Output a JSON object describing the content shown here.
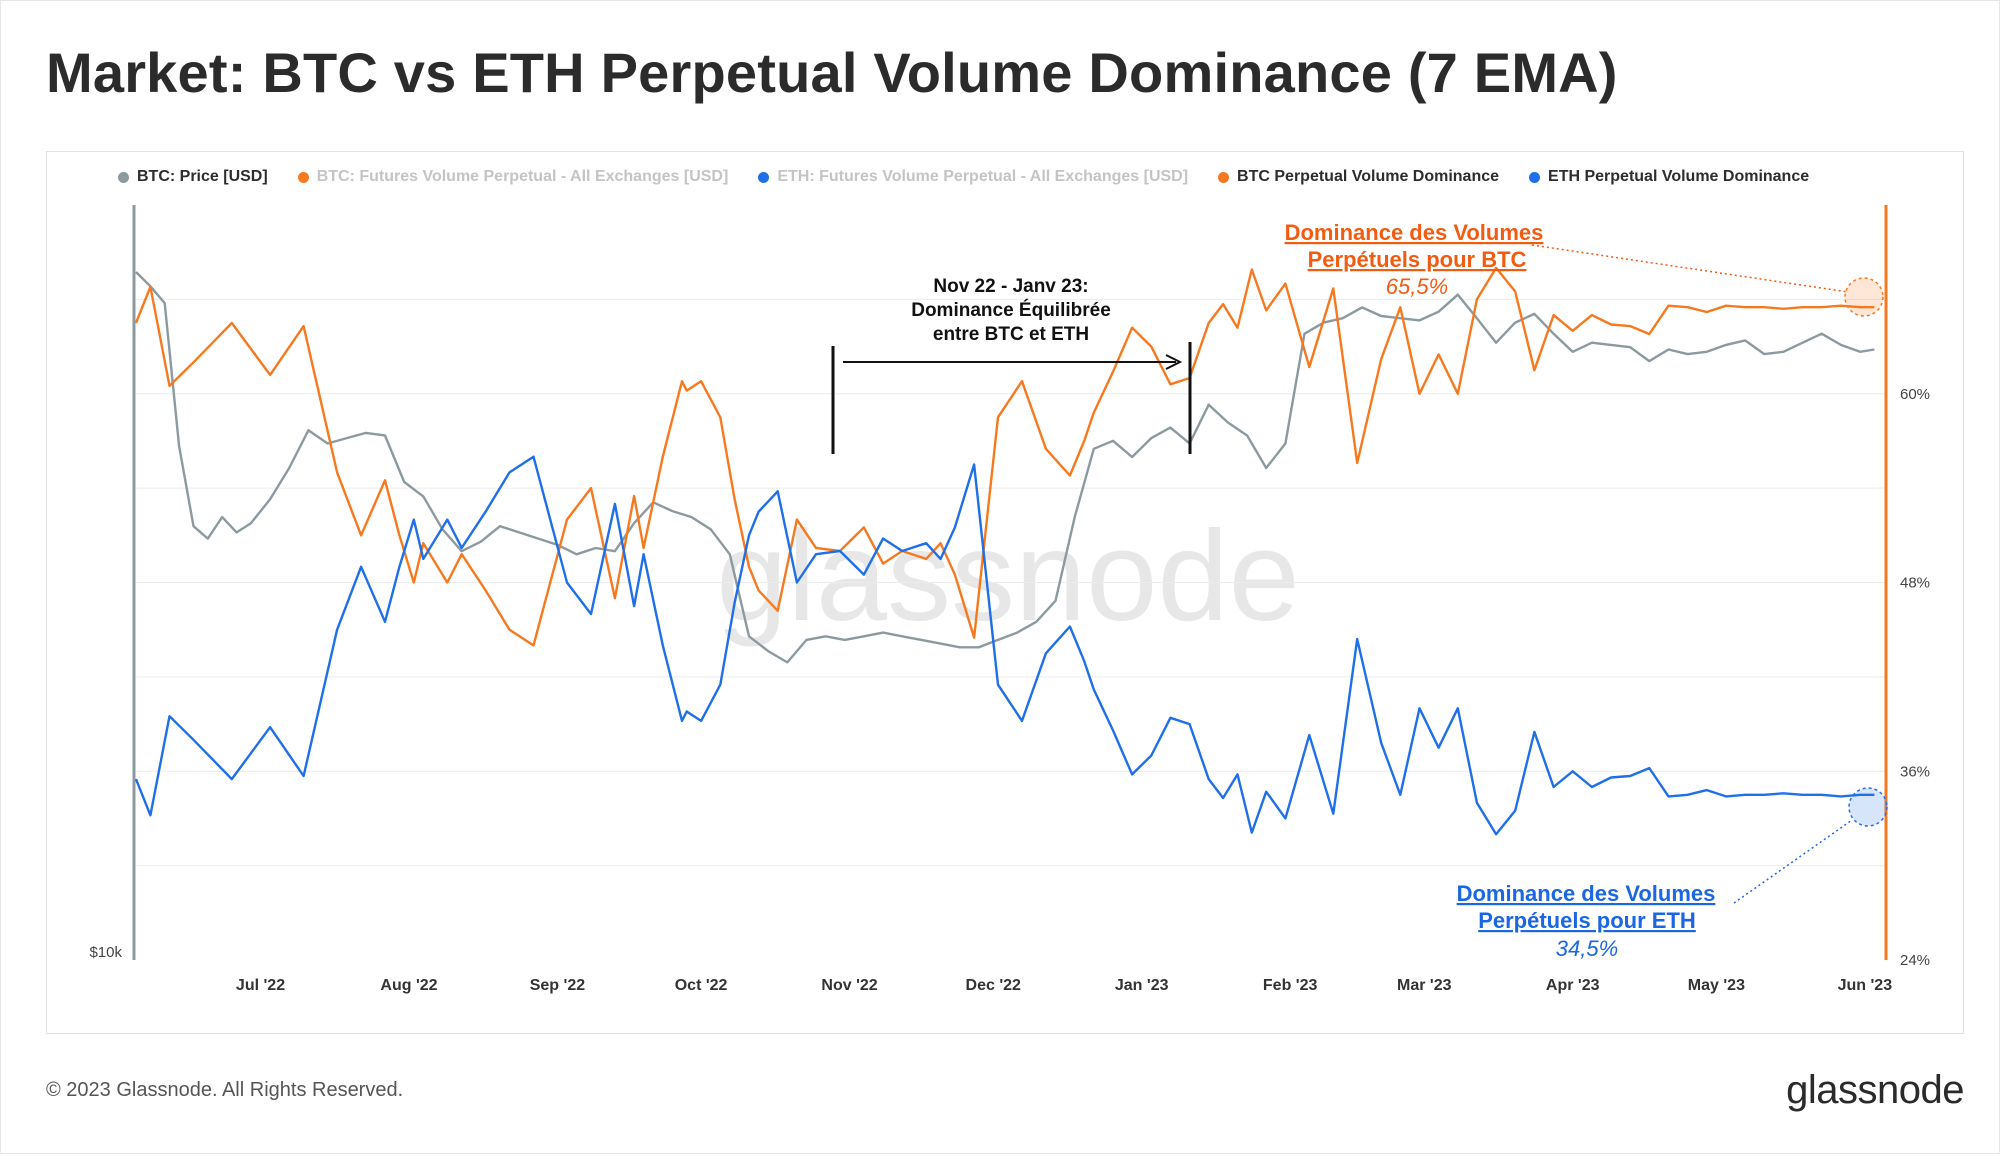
{
  "title": "Market: BTC vs ETH Perpetual Volume Dominance (7 EMA)",
  "footer": {
    "copyright": "© 2023 Glassnode. All Rights Reserved.",
    "logo": "glassnode"
  },
  "watermark": "glassnode",
  "colors": {
    "btc_price": "#8c9aa0",
    "btc_dom": "#f7791f",
    "eth_dom": "#1f6fe9",
    "faded": "#c4c4c4",
    "annotation_orange": "#f25b12",
    "annotation_blue": "#1a66e3"
  },
  "legend": [
    {
      "label": "BTC: Price [USD]",
      "color": "#8c9aa0",
      "faded": false
    },
    {
      "label": "BTC: Futures Volume Perpetual - All Exchanges [USD]",
      "color": "#f7791f",
      "faded": true
    },
    {
      "label": "ETH: Futures Volume Perpetual - All Exchanges [USD]",
      "color": "#1f6fe9",
      "faded": true
    },
    {
      "label": "BTC Perpetual Volume Dominance",
      "color": "#f7791f",
      "faded": false
    },
    {
      "label": "ETH Perpetual Volume Dominance",
      "color": "#1f6fe9",
      "faded": false
    }
  ],
  "annotations": {
    "period_line1": "Nov 22 - Janv 23:",
    "period_line2": "Dominance Équilibrée",
    "period_line3": "entre  BTC et ETH",
    "btc_line1": "Dominance des Volumes",
    "btc_line2": "Perpétuels pour BTC",
    "btc_value": "65,5%",
    "eth_line1": "Dominance des Volumes",
    "eth_line2": "Perpétuels pour ETH",
    "eth_value": "34,5%"
  },
  "chart_data": {
    "type": "line",
    "x_range": [
      "2022-06-05",
      "2023-06-05"
    ],
    "x_tick_labels": [
      "Jul '22",
      "Aug '22",
      "Sep '22",
      "Oct '22",
      "Nov '22",
      "Dec '22",
      "Jan '23",
      "Feb '23",
      "Mar '23",
      "Apr '23",
      "May '23",
      "Jun '23"
    ],
    "left_axis": {
      "label": "$10k",
      "scale": "log"
    },
    "right_axis": {
      "ylim": [
        24,
        72
      ],
      "tick_values": [
        24,
        36,
        48,
        60
      ],
      "tick_labels": [
        "24%",
        "36%",
        "48%",
        "60%"
      ]
    },
    "series": [
      {
        "name": "BTC Perpetual Volume Dominance",
        "axis": "right",
        "x_day": [
          0,
          3,
          7,
          12,
          20,
          28,
          35,
          42,
          47,
          52,
          55,
          58,
          60,
          65,
          68,
          73,
          78,
          83,
          90,
          95,
          100,
          104,
          106,
          110,
          114,
          115,
          118,
          122,
          125,
          128,
          130,
          134,
          138,
          142,
          147,
          152,
          156,
          160,
          165,
          168,
          171,
          175,
          180,
          185,
          190,
          195,
          198,
          200,
          204,
          208,
          212,
          216,
          220,
          224,
          227,
          230,
          233,
          236,
          240,
          245,
          250,
          255,
          260,
          264,
          268,
          272,
          276,
          280,
          284,
          288,
          292,
          296,
          300,
          304,
          308,
          312,
          316,
          320,
          324,
          328,
          332,
          336,
          340,
          344,
          348,
          352,
          356,
          360,
          363
        ],
        "values": [
          64.5,
          66.8,
          60.5,
          62,
          64.5,
          61.2,
          64.3,
          55,
          51,
          54.5,
          51,
          48,
          50.5,
          48,
          49.8,
          47.5,
          45,
          44,
          52,
          54,
          47,
          53.5,
          50.2,
          56,
          60.8,
          60.2,
          60.8,
          58.5,
          53.3,
          49,
          47.5,
          46.2,
          52,
          50.2,
          50,
          51.5,
          49.2,
          50,
          49.5,
          50.5,
          48.5,
          44.5,
          58.5,
          60.8,
          56.5,
          54.8,
          57,
          58.8,
          61.4,
          64.2,
          63,
          60.6,
          61,
          64.5,
          65.7,
          64.2,
          67.9,
          65.3,
          67,
          61.7,
          66.7,
          55.6,
          62.2,
          65.5,
          60,
          62.5,
          60,
          66,
          68,
          66.5,
          61.5,
          65,
          64,
          65,
          64.4,
          64.3,
          63.8,
          65.6,
          65.5,
          65.2,
          65.6,
          65.5,
          65.5,
          65.4,
          65.5,
          65.5,
          65.6,
          65.5,
          65.5
        ]
      },
      {
        "name": "ETH Perpetual Volume Dominance",
        "axis": "right",
        "x_day": [
          0,
          3,
          7,
          12,
          20,
          28,
          35,
          42,
          47,
          52,
          55,
          58,
          60,
          65,
          68,
          73,
          78,
          83,
          90,
          95,
          100,
          104,
          106,
          110,
          114,
          115,
          118,
          122,
          125,
          128,
          130,
          134,
          138,
          142,
          147,
          152,
          156,
          160,
          165,
          168,
          171,
          175,
          180,
          185,
          190,
          195,
          198,
          200,
          204,
          208,
          212,
          216,
          220,
          224,
          227,
          230,
          233,
          236,
          240,
          245,
          250,
          255,
          260,
          264,
          268,
          272,
          276,
          280,
          284,
          288,
          292,
          296,
          300,
          304,
          308,
          312,
          316,
          320,
          324,
          328,
          332,
          336,
          340,
          344,
          348,
          352,
          356,
          360,
          363
        ],
        "values": [
          35.5,
          33.2,
          39.5,
          38,
          35.5,
          38.8,
          35.7,
          45,
          49,
          45.5,
          49,
          52,
          49.5,
          52,
          50.2,
          52.5,
          55,
          56,
          48,
          46,
          53,
          46.5,
          49.8,
          44,
          39.2,
          39.8,
          39.2,
          41.5,
          46.7,
          51,
          52.5,
          53.8,
          48,
          49.8,
          50,
          48.5,
          50.8,
          50,
          50.5,
          49.5,
          51.5,
          55.5,
          41.5,
          39.2,
          43.5,
          45.2,
          43,
          41.2,
          38.6,
          35.8,
          37,
          39.4,
          39,
          35.5,
          34.3,
          35.8,
          32.1,
          34.7,
          33,
          38.3,
          33.3,
          44.4,
          37.8,
          34.5,
          40,
          37.5,
          40,
          34,
          32,
          33.5,
          38.5,
          35,
          36,
          35,
          35.6,
          35.7,
          36.2,
          34.4,
          34.5,
          34.8,
          34.4,
          34.5,
          34.5,
          34.6,
          34.5,
          34.5,
          34.4,
          34.5,
          34.5
        ]
      },
      {
        "name": "BTC: Price [USD]",
        "axis": "left",
        "unit": "USD",
        "x_day": [
          0,
          3,
          6,
          9,
          12,
          15,
          18,
          21,
          24,
          28,
          32,
          36,
          40,
          44,
          48,
          52,
          56,
          60,
          64,
          68,
          72,
          76,
          80,
          84,
          88,
          92,
          96,
          100,
          104,
          108,
          112,
          116,
          120,
          124,
          128,
          132,
          136,
          140,
          144,
          148,
          152,
          156,
          160,
          164,
          168,
          172,
          176,
          180,
          184,
          188,
          192,
          196,
          200,
          204,
          208,
          212,
          216,
          220,
          224,
          228,
          232,
          236,
          240,
          244,
          248,
          252,
          256,
          260,
          264,
          268,
          272,
          276,
          280,
          284,
          288,
          292,
          296,
          300,
          304,
          308,
          312,
          316,
          320,
          324,
          328,
          332,
          336,
          340,
          344,
          348,
          352,
          356,
          360,
          363
        ],
        "values": [
          30500,
          29800,
          29000,
          23000,
          20200,
          19800,
          20500,
          20000,
          20300,
          21100,
          22200,
          23600,
          23100,
          23300,
          23500,
          23400,
          21700,
          21200,
          20100,
          19400,
          19700,
          20200,
          20000,
          19800,
          19600,
          19300,
          19500,
          19400,
          20300,
          21000,
          20700,
          20500,
          20100,
          19300,
          16900,
          16500,
          16200,
          16800,
          16900,
          16800,
          16900,
          17000,
          16900,
          16800,
          16700,
          16600,
          16600,
          16800,
          17000,
          17300,
          17900,
          20500,
          22900,
          23200,
          22600,
          23300,
          23700,
          23100,
          24600,
          23900,
          23400,
          22200,
          23100,
          27600,
          28100,
          28300,
          28800,
          28400,
          28300,
          28200,
          28600,
          29400,
          28300,
          27200,
          28100,
          28500,
          27600,
          26800,
          27200,
          27100,
          27000,
          26400,
          26900,
          26700,
          26800,
          27100,
          27300,
          26700,
          26800,
          27200,
          27600,
          27100,
          26800,
          26900
        ]
      }
    ]
  }
}
